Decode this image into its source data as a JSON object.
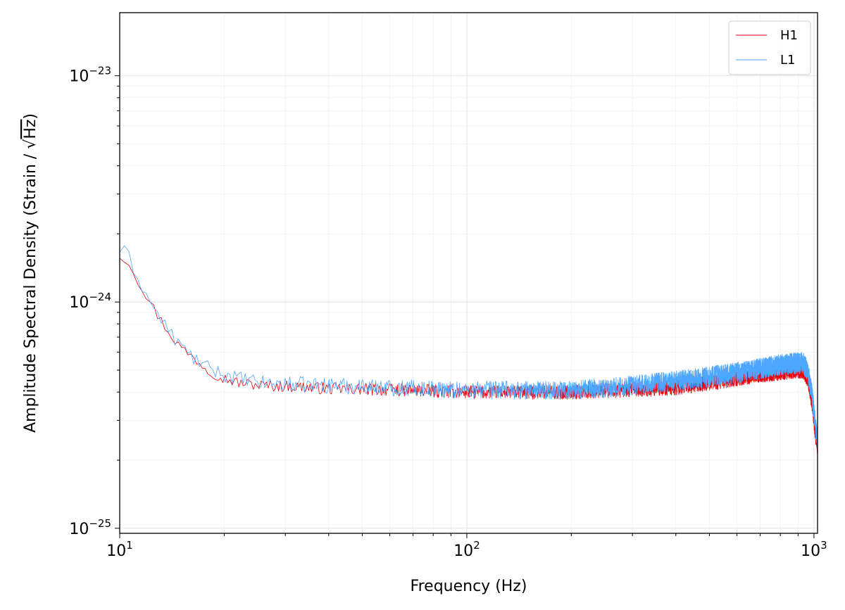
{
  "chart_data": {
    "type": "line",
    "xscale": "log",
    "yscale": "log",
    "xlim": [
      10,
      1024
    ],
    "ylim": [
      9.5e-26,
      1.9e-23
    ],
    "xlabel": "Frequency (Hz)",
    "ylabel_prefix": "Amplitude Spectral Density (Strain / ",
    "ylabel_radical": "√",
    "ylabel_unit": "Hz",
    "ylabel_suffix": ")",
    "grid": true,
    "legend_position": "top-right",
    "x_ticks": [
      {
        "value": 10,
        "base": "10",
        "exp": "1"
      },
      {
        "value": 100,
        "base": "10",
        "exp": "2"
      },
      {
        "value": 1000,
        "base": "10",
        "exp": "3"
      }
    ],
    "y_ticks": [
      {
        "value": 1e-25,
        "base": "10",
        "exp": "−25"
      },
      {
        "value": 1e-24,
        "base": "10",
        "exp": "−24"
      },
      {
        "value": 1e-23,
        "base": "10",
        "exp": "−23"
      }
    ],
    "series": [
      {
        "name": "H1",
        "color": "#e8000b",
        "noise_pct": 6,
        "x": [
          10,
          10.5,
          11,
          12,
          13,
          14,
          15,
          16,
          17,
          18,
          20,
          22,
          25,
          30,
          40,
          60,
          80,
          100,
          150,
          200,
          250,
          300,
          400,
          500,
          600,
          700,
          800,
          880,
          930,
          960,
          990,
          1010,
          1024
        ],
        "y": [
          1.6e-24,
          1.55e-24,
          1.35e-24,
          1.05e-24,
          8.5e-25,
          7.2e-25,
          6.3e-25,
          5.8e-25,
          5.4e-25,
          5e-25,
          4.6e-25,
          4.4e-25,
          4.3e-25,
          4.25e-25,
          4.15e-25,
          4.1e-25,
          4.05e-25,
          4e-25,
          4e-25,
          4e-25,
          4.05e-25,
          4.1e-25,
          4.2e-25,
          4.4e-25,
          4.6e-25,
          4.8e-25,
          4.9e-25,
          5e-25,
          5e-25,
          4.6e-25,
          3.5e-25,
          2.6e-25,
          2.3e-25
        ]
      },
      {
        "name": "L1",
        "color": "#4da6ff",
        "noise_pct": 8,
        "x": [
          10,
          10.5,
          11,
          12,
          13,
          14,
          15,
          16,
          17,
          18,
          20,
          22,
          25,
          30,
          40,
          60,
          80,
          100,
          150,
          200,
          250,
          300,
          400,
          500,
          600,
          700,
          800,
          880,
          930,
          960,
          990,
          1010,
          1024
        ],
        "y": [
          1.7e-24,
          1.65e-24,
          1.4e-24,
          1.05e-24,
          8.6e-25,
          7.3e-25,
          6.4e-25,
          5.8e-25,
          5.4e-25,
          5.1e-25,
          4.8e-25,
          4.6e-25,
          4.4e-25,
          4.35e-25,
          4.3e-25,
          4.2e-25,
          4.15e-25,
          4.1e-25,
          4.1e-25,
          4.1e-25,
          4.2e-25,
          4.3e-25,
          4.5e-25,
          4.7e-25,
          4.9e-25,
          5.1e-25,
          5.3e-25,
          5.4e-25,
          5.4e-25,
          5e-25,
          3.8e-25,
          2.8e-25,
          2.5e-25
        ]
      }
    ]
  }
}
